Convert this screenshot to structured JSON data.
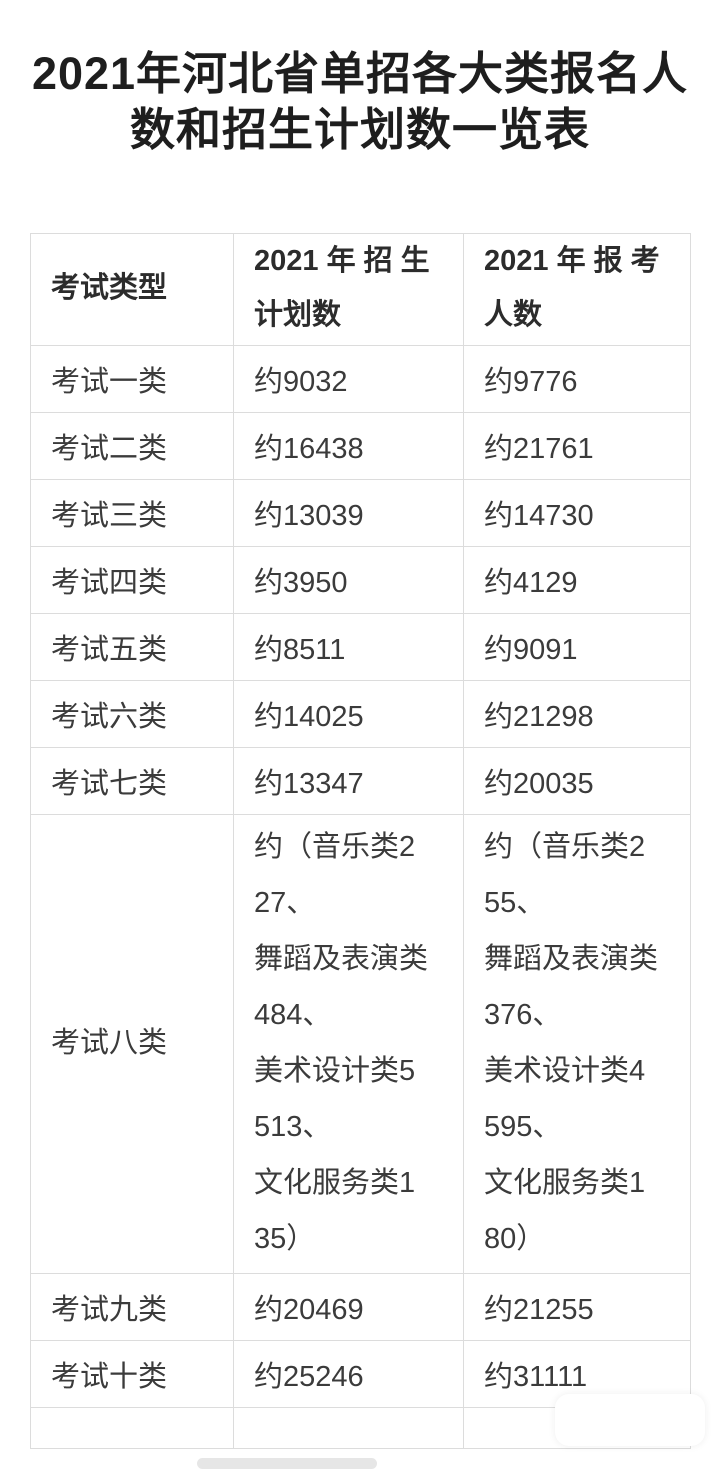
{
  "page": {
    "title": "2021年河北省单招各大类报名人\n数和招生计划数一览表"
  },
  "colors": {
    "background": "#ffffff",
    "table_border": "#dcdcdc",
    "title_text": "#1e1e1e",
    "body_text": "#3b3b3b",
    "artifact_gray": "#d8d8d8"
  },
  "table": {
    "columns": [
      {
        "label": "考试类型"
      },
      {
        "label": "2021 年 招 生\n计划数"
      },
      {
        "label": "2021 年 报 考\n人数"
      }
    ],
    "rows": [
      {
        "type": "考试一类",
        "plan": "约9032",
        "applicants": "约9776"
      },
      {
        "type": "考试二类",
        "plan": "约16438",
        "applicants": "约21761"
      },
      {
        "type": "考试三类",
        "plan": "约13039",
        "applicants": "约14730"
      },
      {
        "type": "考试四类",
        "plan": "约3950",
        "applicants": "约4129"
      },
      {
        "type": "考试五类",
        "plan": "约8511",
        "applicants": "约9091"
      },
      {
        "type": "考试六类",
        "plan": "约14025",
        "applicants": "约21298"
      },
      {
        "type": "考试七类",
        "plan": "约13347",
        "applicants": "约20035"
      },
      {
        "type": "考试八类",
        "plan": "约（音乐类2\n27、\n舞蹈及表演类\n484、\n美术设计类5\n513、\n文化服务类1\n35）",
        "applicants": "约（音乐类2\n55、\n舞蹈及表演类\n376、\n美术设计类4\n595、\n文化服务类1\n80）"
      },
      {
        "type": "考试九类",
        "plan": "约20469",
        "applicants": "约21255"
      },
      {
        "type": "考试十类",
        "plan": "约25246",
        "applicants": "约31111"
      }
    ]
  }
}
